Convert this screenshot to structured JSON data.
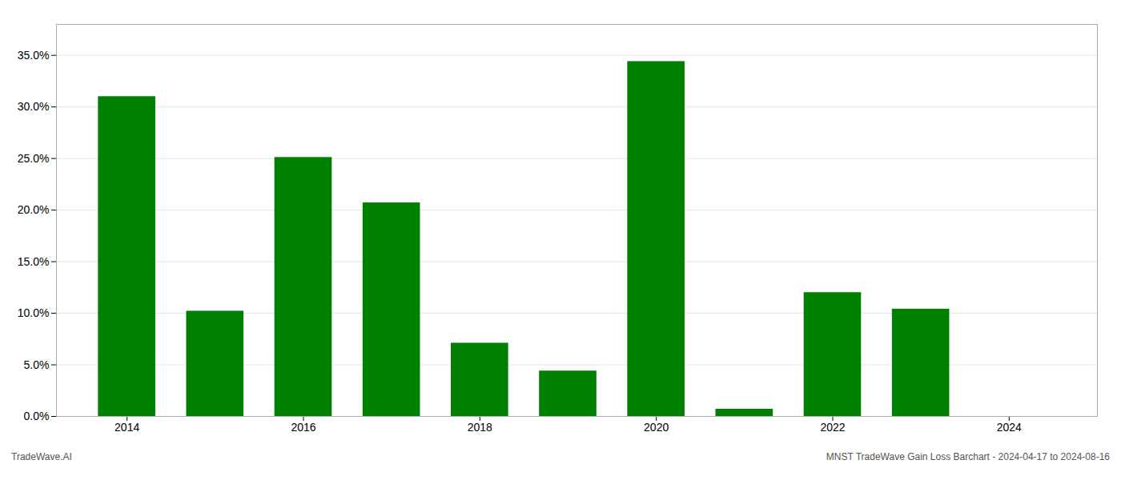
{
  "chart_data": {
    "type": "bar",
    "x": [
      2014,
      2015,
      2016,
      2017,
      2018,
      2019,
      2020,
      2021,
      2022,
      2023
    ],
    "values": [
      0.31,
      0.102,
      0.251,
      0.207,
      0.071,
      0.044,
      0.344,
      0.007,
      0.12,
      0.104
    ],
    "color": "#008000",
    "xlim": [
      2013.2,
      2025.0
    ],
    "xticks": [
      2014,
      2016,
      2018,
      2020,
      2022,
      2024
    ],
    "ylim": [
      0,
      0.38
    ],
    "yticks": [
      {
        "value": 0.0,
        "label": "0.0%"
      },
      {
        "value": 0.05,
        "label": "5.0%"
      },
      {
        "value": 0.1,
        "label": "10.0%"
      },
      {
        "value": 0.15,
        "label": "15.0%"
      },
      {
        "value": 0.2,
        "label": "20.0%"
      },
      {
        "value": 0.25,
        "label": "25.0%"
      },
      {
        "value": 0.3,
        "label": "30.0%"
      },
      {
        "value": 0.35,
        "label": "35.0%"
      }
    ],
    "grid": true,
    "annotations": [
      "TradeWave.AI",
      "MNST TradeWave Gain Loss Barchart - 2024-04-17 to 2024-08-16"
    ]
  }
}
